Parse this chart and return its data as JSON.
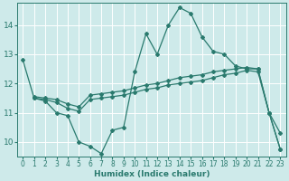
{
  "background_color": "#ceeaea",
  "grid_color": "#ffffff",
  "line_color": "#2a7a6e",
  "xlabel": "Humidex (Indice chaleur)",
  "xlim": [
    -0.5,
    23.5
  ],
  "ylim": [
    9.5,
    14.75
  ],
  "yticks": [
    10,
    11,
    12,
    13,
    14
  ],
  "xticks": [
    0,
    1,
    2,
    3,
    4,
    5,
    6,
    7,
    8,
    9,
    10,
    11,
    12,
    13,
    14,
    15,
    16,
    17,
    18,
    19,
    20,
    21,
    22,
    23
  ],
  "series": [
    {
      "x": [
        0,
        1,
        2,
        3,
        4,
        5,
        6,
        7,
        8,
        9,
        10,
        11,
        12,
        13,
        14,
        15,
        16,
        17,
        18,
        19,
        20,
        21,
        22,
        23
      ],
      "y": [
        12.8,
        11.5,
        11.4,
        11.0,
        10.9,
        10.0,
        9.85,
        9.6,
        10.4,
        10.5,
        12.4,
        13.7,
        13.0,
        14.0,
        14.6,
        14.4,
        13.6,
        13.1,
        13.0,
        12.6,
        12.5,
        12.5,
        11.0,
        10.3
      ]
    },
    {
      "x": [
        1,
        2,
        3,
        4,
        5,
        6,
        7,
        8,
        9,
        10,
        11,
        12,
        13,
        14,
        15,
        16,
        17,
        18,
        19,
        20,
        21,
        22,
        23
      ],
      "y": [
        11.55,
        11.5,
        11.45,
        11.3,
        11.2,
        11.6,
        11.65,
        11.7,
        11.75,
        11.85,
        11.95,
        12.0,
        12.1,
        12.2,
        12.25,
        12.3,
        12.4,
        12.45,
        12.5,
        12.55,
        12.5,
        11.0,
        9.75
      ]
    },
    {
      "x": [
        1,
        2,
        3,
        4,
        5,
        6,
        7,
        8,
        9,
        10,
        11,
        12,
        13,
        14,
        15,
        16,
        17,
        18,
        19,
        20,
        21,
        22,
        23
      ],
      "y": [
        11.5,
        11.45,
        11.35,
        11.15,
        11.05,
        11.45,
        11.5,
        11.55,
        11.6,
        11.7,
        11.8,
        11.85,
        11.95,
        12.0,
        12.05,
        12.1,
        12.2,
        12.3,
        12.35,
        12.45,
        12.4,
        11.0,
        9.75
      ]
    }
  ]
}
